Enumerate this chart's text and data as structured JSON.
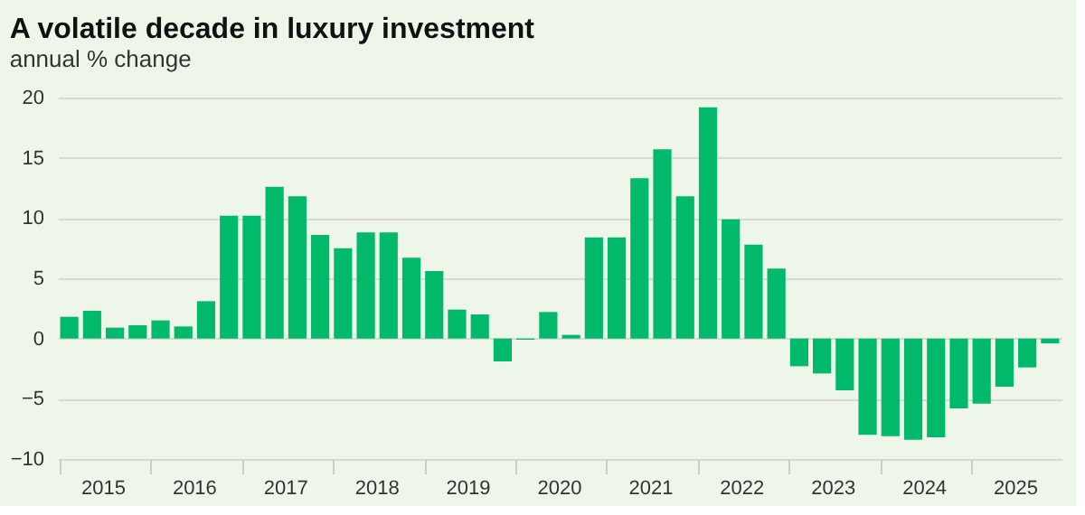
{
  "chart_data": {
    "type": "bar",
    "title": "A volatile decade in luxury investment",
    "subtitle": "annual % change",
    "categories": [
      null,
      "2015",
      null,
      null,
      null,
      "2016",
      null,
      null,
      null,
      "2017",
      null,
      null,
      null,
      "2018",
      null,
      null,
      null,
      "2019",
      null,
      null,
      null,
      "2020",
      null,
      null,
      null,
      "2021",
      null,
      null,
      null,
      "2022",
      null,
      null,
      null,
      "2023",
      null,
      null,
      null,
      "2024",
      null,
      null,
      null,
      "2025",
      null,
      null
    ],
    "values": [
      1.8,
      2.3,
      0.9,
      1.1,
      1.5,
      1.0,
      3.1,
      10.2,
      10.2,
      12.6,
      11.8,
      8.6,
      7.5,
      8.8,
      8.8,
      6.7,
      5.6,
      2.4,
      2.0,
      -1.9,
      -0.1,
      2.2,
      0.3,
      8.4,
      8.4,
      13.3,
      15.7,
      11.8,
      19.2,
      9.9,
      7.8,
      5.8,
      -2.3,
      -2.9,
      -4.3,
      -8.0,
      -8.1,
      -8.4,
      -8.2,
      -5.8,
      -5.4,
      -4.0,
      -2.4,
      -0.4
    ],
    "color": "#00b96b",
    "ylim": [
      -10,
      20
    ],
    "yticks": [
      -10,
      -5,
      0,
      5,
      10,
      15,
      20
    ],
    "grid": "y"
  }
}
